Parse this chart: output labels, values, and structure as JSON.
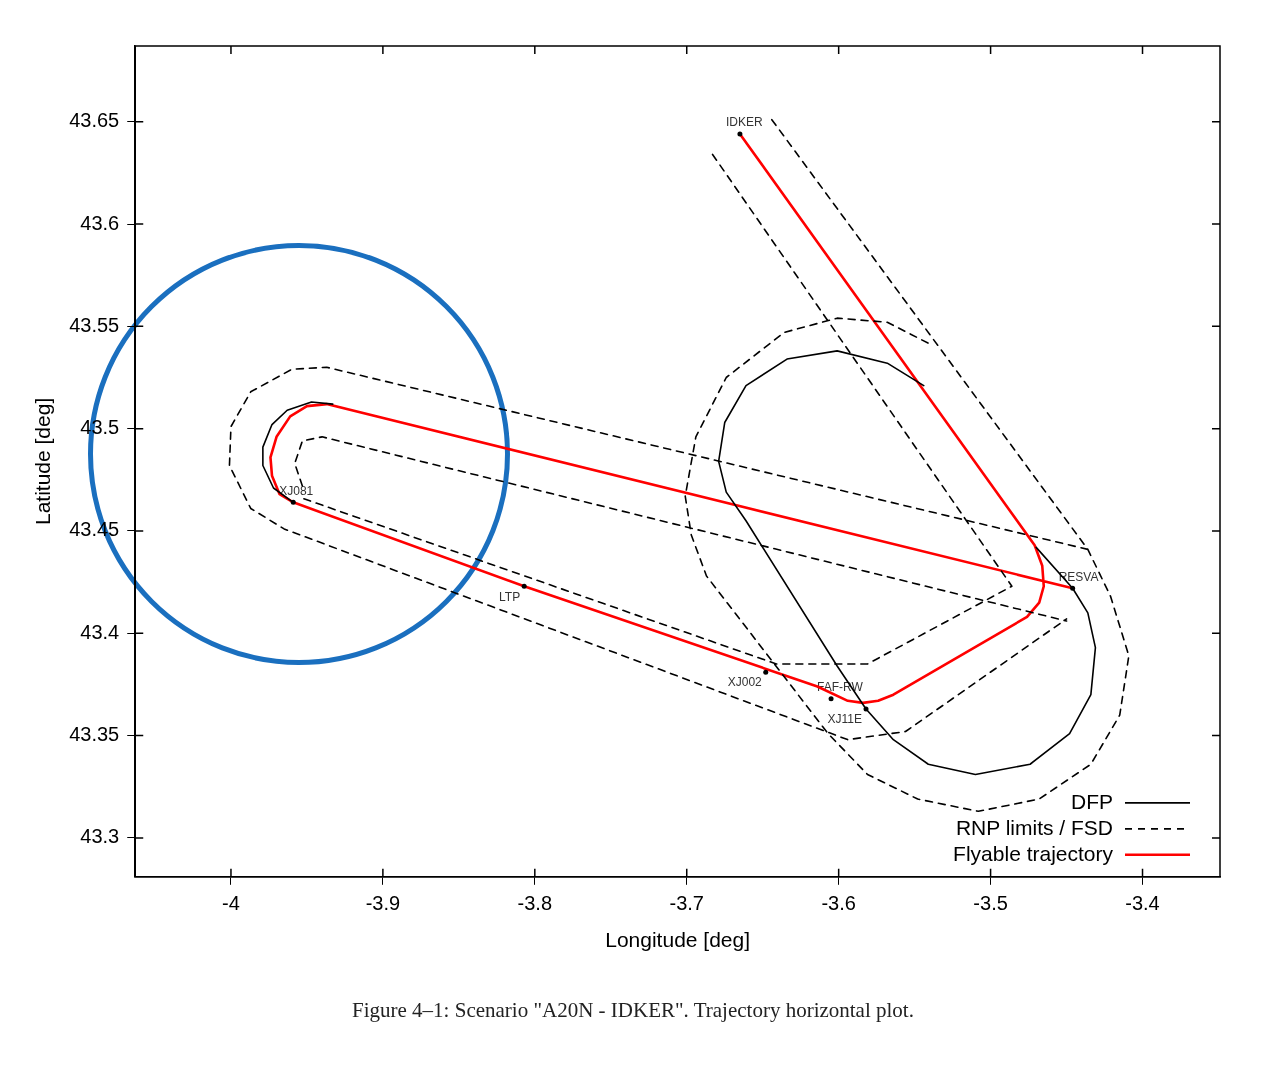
{
  "chart_data": {
    "type": "line",
    "xlabel": "Longitude [deg]",
    "ylabel": "Latitude [deg]",
    "xlim": [
      -4.063,
      -3.349
    ],
    "ylim": [
      43.281,
      43.687
    ],
    "xticks": [
      -4,
      -3.9,
      -3.8,
      -3.7,
      -3.6,
      -3.5,
      -3.4
    ],
    "yticks": [
      43.3,
      43.35,
      43.4,
      43.45,
      43.5,
      43.55,
      43.6,
      43.65
    ],
    "grid": false,
    "legend": "bottom right",
    "marker": "none",
    "series": [
      {
        "name": "DFP",
        "color": "#000000",
        "line_style": "solid",
        "x": [
          -3.959,
          -3.972,
          -3.979,
          -3.979,
          -3.973,
          -3.963,
          -3.947,
          -3.933,
          null,
          -3.47,
          -3.446,
          -3.436,
          -3.431,
          -3.434,
          -3.448,
          -3.474,
          -3.51,
          -3.541,
          -3.564,
          -3.582,
          -3.601,
          -3.661,
          -3.674,
          -3.679,
          -3.675,
          -3.661,
          -3.634,
          -3.601,
          -3.568,
          -3.544
        ],
        "values": [
          43.464,
          43.471,
          43.482,
          43.491,
          43.502,
          43.509,
          43.513,
          43.512,
          null,
          43.442,
          43.422,
          43.41,
          43.393,
          43.37,
          43.351,
          43.336,
          43.331,
          43.336,
          43.348,
          43.363,
          43.384,
          43.455,
          43.469,
          43.484,
          43.503,
          43.521,
          43.534,
          43.538,
          43.532,
          43.521
        ]
      },
      {
        "name": "RNP limits / FSD",
        "color": "#000000",
        "line_style": "dashed",
        "x": [
          -3.436,
          -3.937,
          -3.96,
          -3.987,
          -4.0,
          -4.001,
          -3.987,
          -3.965,
          -3.594,
          -3.556,
          -3.45,
          null,
          -3.953,
          -3.958,
          -3.953,
          -3.94,
          -3.45,
          null,
          -3.683,
          -3.486,
          -3.581,
          -3.641,
          -3.953,
          null,
          -3.644,
          -3.436,
          -3.421,
          -3.409,
          -3.415,
          -3.434,
          -3.468,
          -3.508,
          -3.548,
          -3.581,
          -3.607,
          -3.687,
          -3.697,
          -3.701,
          -3.694,
          -3.674,
          -3.636,
          -3.601,
          -3.568,
          -3.539
        ],
        "values": [
          43.441,
          43.53,
          43.529,
          43.518,
          43.501,
          43.482,
          43.461,
          43.451,
          43.348,
          43.352,
          43.407,
          null,
          43.472,
          43.483,
          43.494,
          43.496,
          43.406,
          null,
          43.634,
          43.423,
          43.385,
          43.385,
          43.466,
          null,
          43.651,
          43.441,
          43.418,
          43.389,
          43.36,
          43.336,
          43.319,
          43.313,
          43.319,
          43.331,
          43.351,
          43.428,
          43.448,
          43.467,
          43.496,
          43.525,
          43.547,
          43.554,
          43.552,
          43.541
        ]
      },
      {
        "name": "Flyable trajectory",
        "color": "#ff0000",
        "line_style": "solid",
        "x": [
          -3.665,
          -3.471,
          -3.466,
          -3.465,
          -3.468,
          -3.476,
          -3.564,
          -3.574,
          -3.584,
          -3.594,
          -3.614,
          -3.807,
          -3.959,
          -3.968,
          -3.973,
          -3.974,
          -3.97,
          -3.961,
          -3.95,
          -3.937,
          -3.446
        ],
        "values": [
          43.644,
          43.443,
          43.433,
          43.423,
          43.415,
          43.408,
          43.37,
          43.367,
          43.366,
          43.367,
          43.374,
          43.423,
          43.464,
          43.468,
          43.477,
          43.486,
          43.496,
          43.506,
          43.511,
          43.512,
          43.422
        ]
      }
    ],
    "annotations": [
      {
        "text": "IDKER",
        "x": -3.665,
        "y": 43.644
      },
      {
        "text": "XJ081",
        "x": -3.959,
        "y": 43.464
      },
      {
        "text": "LTP",
        "x": -3.807,
        "y": 43.423
      },
      {
        "text": "XJ002",
        "x": -3.648,
        "y": 43.381
      },
      {
        "text": "FAF-RW",
        "x": -3.605,
        "y": 43.368
      },
      {
        "text": "XJ11E",
        "x": -3.582,
        "y": 43.363
      },
      {
        "text": "RESVA",
        "x": -3.446,
        "y": 43.422
      },
      "Figure 4–1: Scenario \"A20N - IDKER\". Trajectory horizontal plot."
    ]
  }
}
